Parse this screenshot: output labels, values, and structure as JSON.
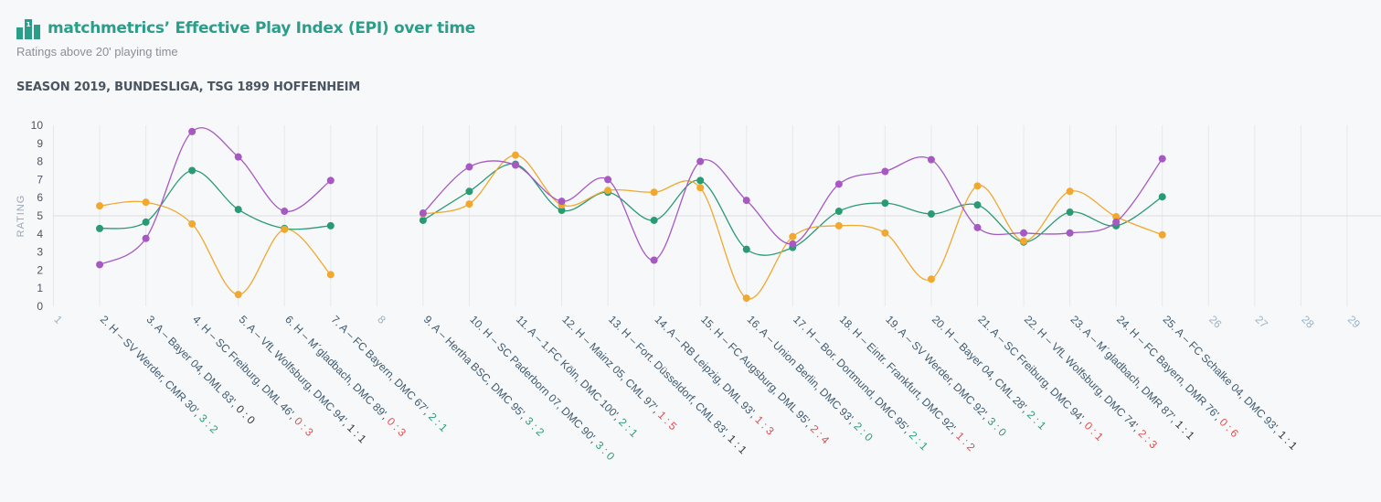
{
  "header": {
    "title": "matchmetrics’ Effective Play Index (EPI) over time",
    "subtitle": "Ratings above 20' playing time",
    "context": "SEASON 2019, BUNDESLIGA, TSG 1899 HOFFENHEIM",
    "logo_icon": "bar-chart-icon"
  },
  "colors": {
    "title": "#2b9e8a",
    "green": "#2a9a73",
    "orange": "#f0a830",
    "purple": "#a659c2",
    "win": "#2a9a73",
    "loss": "#e64b4b",
    "draw": "#333333"
  },
  "chart_data": {
    "type": "line",
    "ylabel": "RATING",
    "ylim": [
      0,
      10
    ],
    "yticks": [
      0,
      1,
      2,
      3,
      4,
      5,
      6,
      7,
      8,
      9,
      10
    ],
    "reference_line": 5,
    "grid": true,
    "x": [
      1,
      2,
      3,
      4,
      5,
      6,
      7,
      8,
      9,
      10,
      11,
      12,
      13,
      14,
      15,
      16,
      17,
      18,
      19,
      20,
      21,
      22,
      23,
      24,
      25,
      26,
      27,
      28,
      29
    ],
    "categories": [
      {
        "x": 1,
        "label": "1",
        "score": "",
        "result": ""
      },
      {
        "x": 2,
        "label": "2. H – SV Werder, CMR 30', ",
        "score": "3 : 2",
        "result": "win"
      },
      {
        "x": 3,
        "label": "3. A – Bayer 04, DML 83', ",
        "score": "0 : 0",
        "result": "draw"
      },
      {
        "x": 4,
        "label": "4. H – SC Freiburg, DML 46', ",
        "score": "0 : 3",
        "result": "loss"
      },
      {
        "x": 5,
        "label": "5. A – VfL Wolfsburg, DMC 94', ",
        "score": "1 : 1",
        "result": "draw"
      },
      {
        "x": 6,
        "label": "6. H – M´gladbach, DMC 89', ",
        "score": "0 : 3",
        "result": "loss"
      },
      {
        "x": 7,
        "label": "7. A – FC Bayern, DMC 67', ",
        "score": "2 : 1",
        "result": "win"
      },
      {
        "x": 8,
        "label": "8",
        "score": "",
        "result": ""
      },
      {
        "x": 9,
        "label": "9. A – Hertha BSC, DMC 95', ",
        "score": "3 : 2",
        "result": "win"
      },
      {
        "x": 10,
        "label": "10. H – SC Paderborn 07, DMC 90', ",
        "score": "3 : 0",
        "result": "win"
      },
      {
        "x": 11,
        "label": "11. A – 1.FC Köln, DMC 100', ",
        "score": "2 : 1",
        "result": "win"
      },
      {
        "x": 12,
        "label": "12. H – Mainz 05, CML 97', ",
        "score": "1 : 5",
        "result": "loss"
      },
      {
        "x": 13,
        "label": "13. H – Fort. Düsseldorf, CML 83', ",
        "score": "1 : 1",
        "result": "draw"
      },
      {
        "x": 14,
        "label": "14. A – RB Leipzig, DML 93', ",
        "score": "1 : 3",
        "result": "loss"
      },
      {
        "x": 15,
        "label": "15. H – FC Augsburg, DML 95', ",
        "score": "2 : 4",
        "result": "loss"
      },
      {
        "x": 16,
        "label": "16. A – Union Berlin, DMC 93', ",
        "score": "2 : 0",
        "result": "win"
      },
      {
        "x": 17,
        "label": "17. H – Bor. Dortmund, DMC 95', ",
        "score": "2 : 1",
        "result": "win"
      },
      {
        "x": 18,
        "label": "18. H – Eintr. Frankfurt, DMC 92', ",
        "score": "1 : 2",
        "result": "loss"
      },
      {
        "x": 19,
        "label": "19. A – SV Werder, DMC 92', ",
        "score": "3 : 0",
        "result": "win"
      },
      {
        "x": 20,
        "label": "20. H – Bayer 04, CML 28', ",
        "score": "2 : 1",
        "result": "win"
      },
      {
        "x": 21,
        "label": "21. A – SC Freiburg, DMC 94', ",
        "score": "0 : 1",
        "result": "loss"
      },
      {
        "x": 22,
        "label": "22. H – VfL Wolfsburg, DMC 74', ",
        "score": "2 : 3",
        "result": "loss"
      },
      {
        "x": 23,
        "label": "23. A – M´gladbach, DMR 87', ",
        "score": "1 : 1",
        "result": "draw"
      },
      {
        "x": 24,
        "label": "24. H – FC Bayern, DMR 76', ",
        "score": "0 : 6",
        "result": "loss"
      },
      {
        "x": 25,
        "label": "25. A – FC Schalke 04, DMC 93', ",
        "score": "1 : 1",
        "result": "draw"
      },
      {
        "x": 26,
        "label": "26",
        "score": "",
        "result": ""
      },
      {
        "x": 27,
        "label": "27",
        "score": "",
        "result": ""
      },
      {
        "x": 28,
        "label": "28",
        "score": "",
        "result": ""
      },
      {
        "x": 29,
        "label": "29",
        "score": "",
        "result": ""
      }
    ],
    "series": [
      {
        "color": "#2a9a73",
        "segments": [
          [
            [
              2,
              4.3
            ],
            [
              3,
              4.65
            ],
            [
              4,
              7.5
            ],
            [
              5,
              5.35
            ],
            [
              6,
              4.3
            ],
            [
              7,
              4.45
            ]
          ],
          [
            [
              9,
              4.75
            ],
            [
              10,
              6.35
            ],
            [
              11,
              7.85
            ],
            [
              12,
              5.3
            ],
            [
              13,
              6.3
            ],
            [
              14,
              4.75
            ],
            [
              15,
              6.95
            ],
            [
              16,
              3.15
            ],
            [
              17,
              3.25
            ],
            [
              18,
              5.25
            ],
            [
              19,
              5.7
            ],
            [
              20,
              5.1
            ],
            [
              21,
              5.6
            ],
            [
              22,
              3.55
            ],
            [
              23,
              5.2
            ],
            [
              24,
              4.45
            ],
            [
              25,
              6.05
            ]
          ]
        ]
      },
      {
        "color": "#f0a830",
        "segments": [
          [
            [
              2,
              5.55
            ],
            [
              3,
              5.75
            ],
            [
              4,
              4.55
            ],
            [
              5,
              0.65
            ],
            [
              6,
              4.25
            ],
            [
              7,
              1.75
            ]
          ],
          [
            [
              9,
              5.1
            ],
            [
              10,
              5.65
            ],
            [
              11,
              8.35
            ],
            [
              12,
              5.6
            ],
            [
              13,
              6.4
            ],
            [
              14,
              6.3
            ],
            [
              15,
              6.55
            ],
            [
              16,
              0.45
            ],
            [
              17,
              3.85
            ],
            [
              18,
              4.45
            ],
            [
              19,
              4.05
            ],
            [
              20,
              1.5
            ],
            [
              21,
              6.65
            ],
            [
              22,
              3.6
            ],
            [
              23,
              6.35
            ],
            [
              24,
              4.95
            ],
            [
              25,
              3.95
            ]
          ]
        ]
      },
      {
        "color": "#a659c2",
        "segments": [
          [
            [
              2,
              2.3
            ],
            [
              3,
              3.75
            ],
            [
              4,
              9.65
            ],
            [
              5,
              8.25
            ],
            [
              6,
              5.25
            ],
            [
              7,
              6.95
            ]
          ],
          [
            [
              9,
              5.15
            ],
            [
              10,
              7.7
            ],
            [
              11,
              7.8
            ],
            [
              12,
              5.8
            ],
            [
              13,
              7.0
            ],
            [
              14,
              2.55
            ],
            [
              15,
              8.0
            ],
            [
              16,
              5.85
            ],
            [
              17,
              3.45
            ],
            [
              18,
              6.75
            ],
            [
              19,
              7.45
            ],
            [
              20,
              8.1
            ],
            [
              21,
              4.35
            ],
            [
              22,
              4.05
            ],
            [
              23,
              4.05
            ],
            [
              24,
              4.65
            ],
            [
              25,
              8.15
            ]
          ]
        ]
      }
    ]
  }
}
